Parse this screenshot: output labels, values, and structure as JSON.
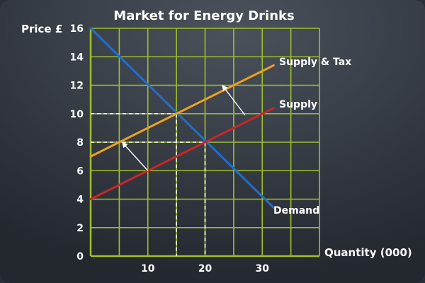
{
  "chart_data": {
    "type": "line",
    "title": "Market for Energy Drinks",
    "xlabel": "Quantity (000)",
    "ylabel": "Price £",
    "xlim": [
      0,
      40
    ],
    "ylim": [
      0,
      16
    ],
    "x_ticks": [
      10,
      20,
      30
    ],
    "y_ticks": [
      0,
      2,
      4,
      6,
      8,
      10,
      12,
      14,
      16
    ],
    "grid": true,
    "series": [
      {
        "name": "Demand",
        "color": "#1f6fc9",
        "x": [
          0,
          32
        ],
        "y": [
          16,
          3.4
        ]
      },
      {
        "name": "Supply",
        "color": "#c8262a",
        "x": [
          0,
          32
        ],
        "y": [
          4,
          10.4
        ]
      },
      {
        "name": "Supply & Tax",
        "color": "#f0a020",
        "x": [
          0,
          32
        ],
        "y": [
          7,
          13.4
        ]
      }
    ],
    "guides": [
      {
        "x": 15,
        "y": 10
      },
      {
        "x": 20,
        "y": 8
      }
    ],
    "shift_arrows": [
      {
        "from": [
          10,
          6
        ],
        "to": [
          5.5,
          8
        ]
      },
      {
        "from": [
          27,
          9.9
        ],
        "to": [
          23,
          12
        ]
      }
    ],
    "colors": {
      "plot_background": "#2b3038",
      "grid": "#9fbf2a",
      "text": "#ffffff"
    }
  }
}
